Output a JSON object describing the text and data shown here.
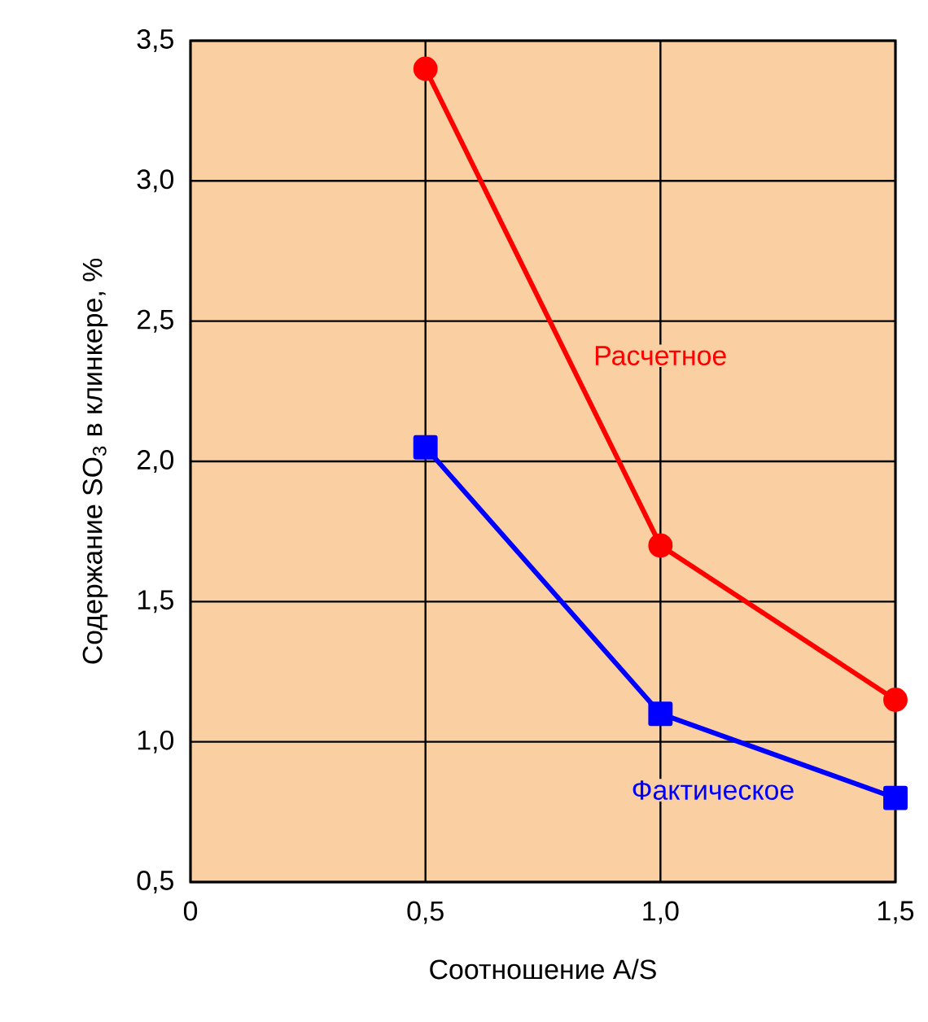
{
  "chart_data": {
    "type": "line",
    "xlabel": "Соотношение A/S",
    "ylabel": "Содержание SO$_{3}$ в клинкере, %",
    "x": [
      0.5,
      1.0,
      1.5
    ],
    "series": [
      {
        "name": "Расчетное",
        "color": "#ff0000",
        "marker": "circle",
        "values": [
          3.4,
          1.7,
          1.15
        ]
      },
      {
        "name": "Фактическое",
        "color": "#0000ff",
        "marker": "square",
        "values": [
          2.05,
          1.1,
          0.8
        ]
      }
    ],
    "xlim": [
      0,
      1.5
    ],
    "ylim": [
      0.5,
      3.5
    ],
    "xticks": [
      0,
      {
        "value": 0.5,
        "label": "0,5"
      },
      {
        "value": 1.0,
        "label": "1,0"
      },
      {
        "value": 1.5,
        "label": "1,5"
      }
    ],
    "yticks": [
      {
        "value": 0.5,
        "label": "0,5"
      },
      {
        "value": 1.0,
        "label": "1,0"
      },
      {
        "value": 1.5,
        "label": "1,5"
      },
      {
        "value": 2.0,
        "label": "2,0"
      },
      {
        "value": 2.5,
        "label": "2,5"
      },
      {
        "value": 3.0,
        "label": "3,0"
      },
      {
        "value": 3.5,
        "label": "3,5"
      }
    ],
    "grid": true,
    "legend": false,
    "line_style": "solid"
  }
}
